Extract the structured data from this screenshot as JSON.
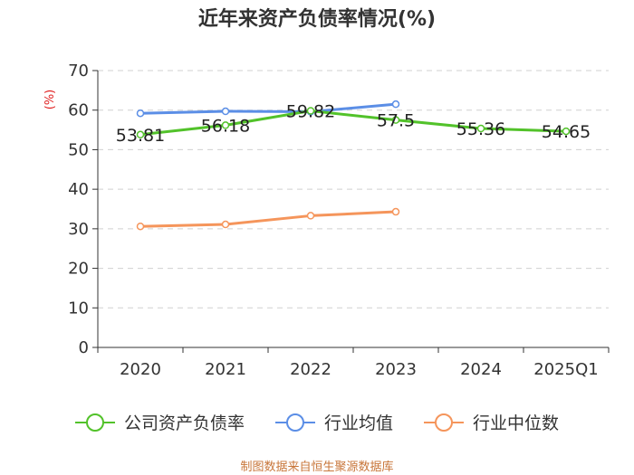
{
  "chart_data": {
    "type": "line",
    "title": "近年来资产负债率情况(%)",
    "ylabel": "(%)",
    "xlabel": "",
    "categories": [
      "2020",
      "2021",
      "2022",
      "2023",
      "2024",
      "2025Q1"
    ],
    "ylim": [
      0,
      70
    ],
    "yticks": [
      0,
      10,
      20,
      30,
      40,
      50,
      60,
      70
    ],
    "grid": true,
    "legend_position": "bottom",
    "series": [
      {
        "name": "公司资产负债率",
        "color": "#52c22a",
        "values": [
          53.81,
          56.18,
          59.82,
          57.5,
          55.36,
          54.65
        ],
        "labels": [
          "53.81",
          "56.18",
          "59.82",
          "57.5",
          "55.36",
          "54.65"
        ]
      },
      {
        "name": "行业均值",
        "color": "#5b8ee6",
        "values": [
          59.2,
          59.7,
          59.6,
          61.5,
          null,
          null
        ]
      },
      {
        "name": "行业中位数",
        "color": "#f5955b",
        "values": [
          30.6,
          31.1,
          33.3,
          34.3,
          null,
          null
        ]
      }
    ],
    "source": "制图数据来自恒生聚源数据库"
  }
}
